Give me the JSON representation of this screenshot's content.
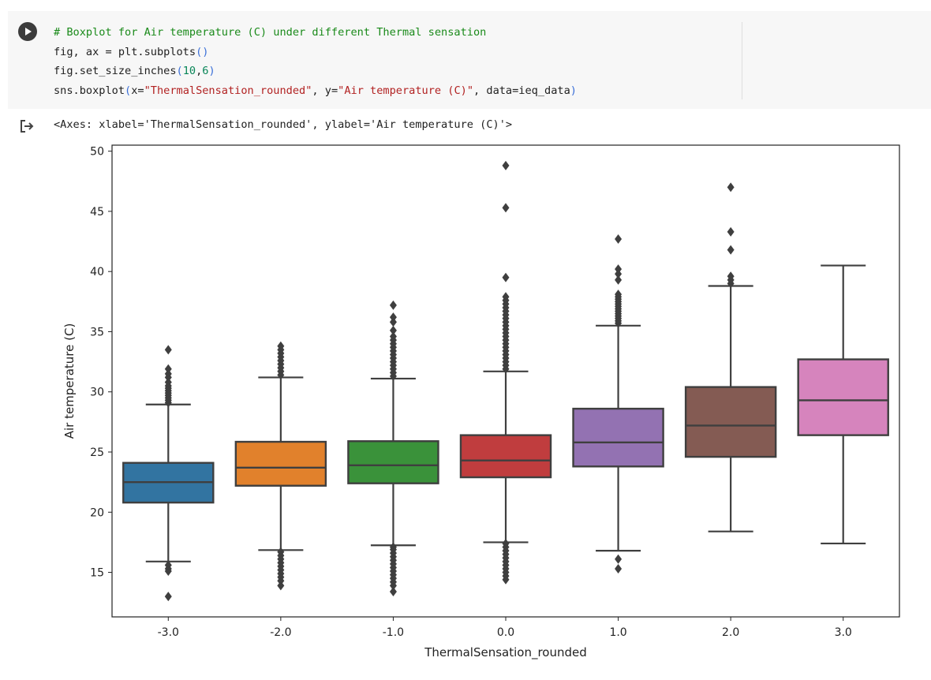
{
  "cell": {
    "run_icon": "play-circle-icon",
    "code_lines": [
      [
        {
          "t": "# Boxplot for Air temperature (C) under different Thermal sensation",
          "c": "cm"
        }
      ],
      [
        {
          "t": "fig, ax = plt.subplots",
          "c": ""
        },
        {
          "t": "()",
          "c": "par"
        }
      ],
      [
        {
          "t": "fig.set_size_inches",
          "c": ""
        },
        {
          "t": "(",
          "c": "par"
        },
        {
          "t": "10",
          "c": "num"
        },
        {
          "t": ",",
          "c": ""
        },
        {
          "t": "6",
          "c": "num"
        },
        {
          "t": ")",
          "c": "par"
        }
      ],
      [
        {
          "t": "sns.boxplot",
          "c": ""
        },
        {
          "t": "(",
          "c": "par"
        },
        {
          "t": "x=",
          "c": ""
        },
        {
          "t": "\"ThermalSensation_rounded\"",
          "c": "str"
        },
        {
          "t": ", y=",
          "c": ""
        },
        {
          "t": "\"Air temperature (C)\"",
          "c": "str"
        },
        {
          "t": ", data=ieq_data",
          "c": ""
        },
        {
          "t": ")",
          "c": "par"
        }
      ]
    ],
    "output_icon": "output-arrow-icon",
    "output_text": "<Axes: xlabel='ThermalSensation_rounded', ylabel='Air temperature (C)'>"
  },
  "chart_data": {
    "type": "box",
    "xlabel": "ThermalSensation_rounded",
    "ylabel": "Air temperature (C)",
    "ylim": [
      11.3,
      50.5
    ],
    "yticks": [
      15,
      20,
      25,
      30,
      35,
      40,
      45,
      50
    ],
    "grid": false,
    "categories": [
      "-3.0",
      "-2.0",
      "-1.0",
      "0.0",
      "1.0",
      "2.0",
      "3.0"
    ],
    "boxes": [
      {
        "category": "-3.0",
        "color": "#3274a1",
        "whisker_low": 15.9,
        "q1": 20.8,
        "median": 22.5,
        "q3": 24.1,
        "whisker_high": 28.95,
        "outliers": [
          13.0,
          15.1,
          15.3,
          15.6,
          29.1,
          29.3,
          29.5,
          29.7,
          29.9,
          30.1,
          30.3,
          30.5,
          30.8,
          31.2,
          31.5,
          31.9,
          33.5
        ]
      },
      {
        "category": "-2.0",
        "color": "#e1812c",
        "whisker_low": 16.85,
        "q1": 22.2,
        "median": 23.7,
        "q3": 25.85,
        "whisker_high": 31.2,
        "outliers": [
          13.9,
          14.3,
          14.6,
          14.9,
          15.2,
          15.5,
          15.8,
          16.1,
          16.4,
          16.7,
          31.4,
          31.7,
          32.0,
          32.3,
          32.6,
          32.9,
          33.2,
          33.5,
          33.8
        ]
      },
      {
        "category": "-1.0",
        "color": "#3a923a",
        "whisker_low": 17.25,
        "q1": 22.4,
        "median": 23.9,
        "q3": 25.9,
        "whisker_high": 31.1,
        "outliers": [
          13.4,
          13.9,
          14.2,
          14.5,
          14.8,
          15.1,
          15.4,
          15.7,
          16.0,
          16.3,
          16.6,
          16.9,
          17.1,
          31.3,
          31.6,
          31.9,
          32.2,
          32.5,
          32.8,
          33.1,
          33.4,
          33.7,
          34.0,
          34.3,
          34.6,
          35.1,
          35.8,
          36.2,
          37.2
        ]
      },
      {
        "category": "0.0",
        "color": "#c03d3e",
        "whisker_low": 17.5,
        "q1": 22.9,
        "median": 24.3,
        "q3": 26.4,
        "whisker_high": 31.7,
        "outliers": [
          14.4,
          14.7,
          15.0,
          15.3,
          15.6,
          15.9,
          16.2,
          16.5,
          16.8,
          17.1,
          17.4,
          31.9,
          32.2,
          32.5,
          32.8,
          33.1,
          33.4,
          33.7,
          34.0,
          34.3,
          34.6,
          34.9,
          35.2,
          35.5,
          35.8,
          36.1,
          36.4,
          36.7,
          37.0,
          37.3,
          37.6,
          37.9,
          39.5,
          45.3,
          48.8
        ]
      },
      {
        "category": "1.0",
        "color": "#9372b2",
        "whisker_low": 16.8,
        "q1": 23.8,
        "median": 25.8,
        "q3": 28.6,
        "whisker_high": 35.5,
        "outliers": [
          15.3,
          16.1,
          35.7,
          35.9,
          36.1,
          36.3,
          36.5,
          36.7,
          36.9,
          37.1,
          37.3,
          37.5,
          37.7,
          37.9,
          38.1,
          39.3,
          39.8,
          40.2,
          42.7
        ]
      },
      {
        "category": "2.0",
        "color": "#845b53",
        "whisker_low": 18.4,
        "q1": 24.6,
        "median": 27.2,
        "q3": 30.4,
        "whisker_high": 38.8,
        "outliers": [
          39.0,
          39.3,
          39.6,
          41.8,
          43.3,
          47.0
        ]
      },
      {
        "category": "3.0",
        "color": "#d684bd",
        "whisker_low": 17.4,
        "q1": 26.4,
        "median": 29.3,
        "q3": 32.7,
        "whisker_high": 40.5,
        "outliers": []
      }
    ]
  }
}
